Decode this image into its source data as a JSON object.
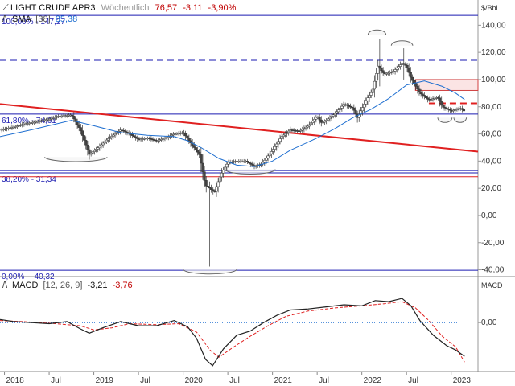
{
  "header": {
    "symbol": "LIGHT CRUDE APR3",
    "interval": "Wöchentlich",
    "last": "76,57",
    "change": "-3,11",
    "change_pct": "-3,90%",
    "sma_label": "SMA",
    "sma_period": "[38]",
    "sma_value": "85,38",
    "unit": "$/Bbl"
  },
  "macd_header": {
    "label": "MACD",
    "params": "[12, 26, 9]",
    "macd_value": "-3,21",
    "signal_value": "-3,76",
    "axis_label": "MACD"
  },
  "colors": {
    "up": "#ffffff",
    "down": "#444444",
    "sma": "#1f6fd0",
    "fib": "#1a1ab0",
    "trend": "#e02020",
    "resistance_dashed": "#1a1ab0",
    "support_dashed": "#e02020",
    "signal": "#e02020"
  },
  "chart_data": [
    {
      "type": "line",
      "name": "price",
      "candles": "weekly",
      "ylim": [
        -45,
        155
      ],
      "yticks": [
        "140,00",
        "120,00",
        "100,00",
        "80,00",
        "60,00",
        "40,00",
        "20,00",
        "0,00",
        "-20,00",
        "-40,00"
      ],
      "ytick_values": [
        140,
        120,
        100,
        80,
        60,
        40,
        20,
        0,
        -20,
        -40
      ],
      "xticks": [
        "2018",
        "Jul",
        "2019",
        "Jul",
        "2020",
        "Jul",
        "2021",
        "Jul",
        "2022",
        "Jul",
        "2023"
      ],
      "xtick_values": [
        2018.0,
        2018.5,
        2019.0,
        2019.5,
        2020.0,
        2020.5,
        2021.0,
        2021.5,
        2022.0,
        2022.5,
        2023.0
      ],
      "xlim": [
        2017.95,
        2023.3
      ],
      "price_path": [
        [
          2017.95,
          63
        ],
        [
          2018.1,
          65
        ],
        [
          2018.2,
          67
        ],
        [
          2018.35,
          69
        ],
        [
          2018.5,
          71
        ],
        [
          2018.6,
          73
        ],
        [
          2018.75,
          74
        ],
        [
          2018.85,
          63
        ],
        [
          2018.95,
          45
        ],
        [
          2019.05,
          50
        ],
        [
          2019.15,
          56
        ],
        [
          2019.3,
          63
        ],
        [
          2019.4,
          60
        ],
        [
          2019.5,
          56
        ],
        [
          2019.6,
          57
        ],
        [
          2019.7,
          55
        ],
        [
          2019.8,
          57
        ],
        [
          2019.9,
          60
        ],
        [
          2020.0,
          61
        ],
        [
          2020.1,
          52
        ],
        [
          2020.18,
          45
        ],
        [
          2020.25,
          22
        ],
        [
          2020.3,
          20
        ],
        [
          2020.35,
          17
        ],
        [
          2020.42,
          30
        ],
        [
          2020.5,
          39
        ],
        [
          2020.6,
          40
        ],
        [
          2020.7,
          40
        ],
        [
          2020.8,
          36
        ],
        [
          2020.88,
          38
        ],
        [
          2021.0,
          48
        ],
        [
          2021.1,
          58
        ],
        [
          2021.2,
          63
        ],
        [
          2021.3,
          62
        ],
        [
          2021.4,
          66
        ],
        [
          2021.5,
          73
        ],
        [
          2021.55,
          68
        ],
        [
          2021.6,
          70
        ],
        [
          2021.7,
          75
        ],
        [
          2021.8,
          82
        ],
        [
          2021.9,
          79
        ],
        [
          2021.95,
          72
        ],
        [
          2022.05,
          85
        ],
        [
          2022.12,
          92
        ],
        [
          2022.18,
          110
        ],
        [
          2022.25,
          104
        ],
        [
          2022.35,
          106
        ],
        [
          2022.45,
          112
        ],
        [
          2022.5,
          110
        ],
        [
          2022.55,
          101
        ],
        [
          2022.65,
          90
        ],
        [
          2022.75,
          85
        ],
        [
          2022.85,
          87
        ],
        [
          2022.9,
          80
        ],
        [
          2023.0,
          77
        ],
        [
          2023.1,
          79
        ],
        [
          2023.15,
          76.57
        ]
      ],
      "spikes": [
        {
          "x": 2020.3,
          "low": -37.6,
          "high": 25
        },
        {
          "x": 2022.2,
          "low": 95,
          "high": 130
        },
        {
          "x": 2022.47,
          "low": 100,
          "high": 123
        }
      ],
      "sma_path": [
        [
          2017.95,
          58
        ],
        [
          2018.3,
          63
        ],
        [
          2018.75,
          70
        ],
        [
          2019.0,
          66
        ],
        [
          2019.3,
          61
        ],
        [
          2019.6,
          59
        ],
        [
          2019.9,
          58
        ],
        [
          2020.05,
          55
        ],
        [
          2020.2,
          50
        ],
        [
          2020.4,
          42
        ],
        [
          2020.6,
          37
        ],
        [
          2020.8,
          36
        ],
        [
          2021.0,
          40
        ],
        [
          2021.2,
          48
        ],
        [
          2021.5,
          57
        ],
        [
          2021.7,
          64
        ],
        [
          2021.9,
          72
        ],
        [
          2022.1,
          78
        ],
        [
          2022.3,
          86
        ],
        [
          2022.5,
          96
        ],
        [
          2022.7,
          99
        ],
        [
          2022.9,
          95
        ],
        [
          2023.05,
          90
        ],
        [
          2023.15,
          85.38
        ]
      ],
      "fib_levels": [
        {
          "label": "100,00% - 147,27",
          "value": 147.27
        },
        {
          "label": "61,80% - 74,61",
          "value": 74.61
        },
        {
          "label": "38,20% - 31,34",
          "value": 31.34
        },
        {
          "label": "0,00% - -40,32",
          "value": -40.32
        }
      ],
      "extra_levels": [
        {
          "value": 28.5,
          "color": "#e02020"
        },
        {
          "value": 33.0,
          "color": "#1a1ab0"
        }
      ],
      "dashed_levels": [
        {
          "value": 114.5,
          "color": "#1a1ab0",
          "x0": 2017.95,
          "x1": 2023.3
        },
        {
          "value": 82.5,
          "color": "#e02020",
          "x0": 2022.75,
          "x1": 2023.3
        }
      ],
      "trendline": {
        "x0": 2017.95,
        "y0": 82,
        "x1": 2023.3,
        "y1": 47
      },
      "resistance_box": {
        "x0": 2022.6,
        "x1": 2023.3,
        "y0": 92,
        "y1": 100
      },
      "arcs": [
        {
          "cx": 2018.8,
          "y": 43,
          "rx": 0.35,
          "dir": "down"
        },
        {
          "cx": 2020.75,
          "y": 34,
          "rx": 0.28,
          "dir": "down"
        },
        {
          "cx": 2020.3,
          "y": -39.5,
          "rx": 0.3,
          "dir": "down"
        },
        {
          "cx": 2022.17,
          "y": 133,
          "rx": 0.1,
          "dir": "up"
        },
        {
          "cx": 2022.45,
          "y": 125,
          "rx": 0.12,
          "dir": "up"
        },
        {
          "cx": 2022.93,
          "y": 72,
          "rx": 0.08,
          "dir": "down"
        },
        {
          "cx": 2023.1,
          "y": 72,
          "rx": 0.07,
          "dir": "down"
        }
      ]
    },
    {
      "type": "line",
      "name": "macd",
      "ylim": [
        -4.5,
        3
      ],
      "yticks": [
        "0,00"
      ],
      "ytick_values": [
        0
      ],
      "macd_path": [
        [
          2017.95,
          0.3
        ],
        [
          2018.1,
          0.1
        ],
        [
          2018.3,
          0.0
        ],
        [
          2018.5,
          -0.1
        ],
        [
          2018.7,
          0.1
        ],
        [
          2018.85,
          -0.6
        ],
        [
          2018.95,
          -1.0
        ],
        [
          2019.1,
          -0.5
        ],
        [
          2019.3,
          0.1
        ],
        [
          2019.5,
          -0.3
        ],
        [
          2019.7,
          -0.3
        ],
        [
          2019.9,
          0.2
        ],
        [
          2020.05,
          -0.4
        ],
        [
          2020.15,
          -1.5
        ],
        [
          2020.25,
          -3.5
        ],
        [
          2020.33,
          -4.1
        ],
        [
          2020.45,
          -2.5
        ],
        [
          2020.6,
          -1.2
        ],
        [
          2020.75,
          -0.8
        ],
        [
          2020.9,
          0.0
        ],
        [
          2021.05,
          0.7
        ],
        [
          2021.2,
          1.2
        ],
        [
          2021.4,
          1.3
        ],
        [
          2021.6,
          1.5
        ],
        [
          2021.8,
          1.7
        ],
        [
          2022.0,
          1.6
        ],
        [
          2022.15,
          2.1
        ],
        [
          2022.3,
          2.0
        ],
        [
          2022.45,
          2.3
        ],
        [
          2022.55,
          1.6
        ],
        [
          2022.65,
          0.2
        ],
        [
          2022.8,
          -1.2
        ],
        [
          2022.95,
          -2.2
        ],
        [
          2023.05,
          -2.6
        ],
        [
          2023.15,
          -3.21
        ]
      ],
      "signal_path": [
        [
          2017.95,
          0.2
        ],
        [
          2018.2,
          0.1
        ],
        [
          2018.5,
          -0.05
        ],
        [
          2018.85,
          -0.3
        ],
        [
          2019.0,
          -0.7
        ],
        [
          2019.2,
          -0.5
        ],
        [
          2019.4,
          -0.1
        ],
        [
          2019.7,
          -0.2
        ],
        [
          2019.95,
          -0.1
        ],
        [
          2020.15,
          -0.9
        ],
        [
          2020.3,
          -2.6
        ],
        [
          2020.4,
          -3.3
        ],
        [
          2020.55,
          -2.4
        ],
        [
          2020.75,
          -1.3
        ],
        [
          2020.95,
          -0.3
        ],
        [
          2021.15,
          0.6
        ],
        [
          2021.4,
          1.1
        ],
        [
          2021.7,
          1.4
        ],
        [
          2022.0,
          1.6
        ],
        [
          2022.25,
          1.8
        ],
        [
          2022.45,
          2.0
        ],
        [
          2022.6,
          1.4
        ],
        [
          2022.75,
          0.2
        ],
        [
          2022.9,
          -1.3
        ],
        [
          2023.05,
          -2.3
        ],
        [
          2023.15,
          -3.76
        ]
      ]
    }
  ]
}
